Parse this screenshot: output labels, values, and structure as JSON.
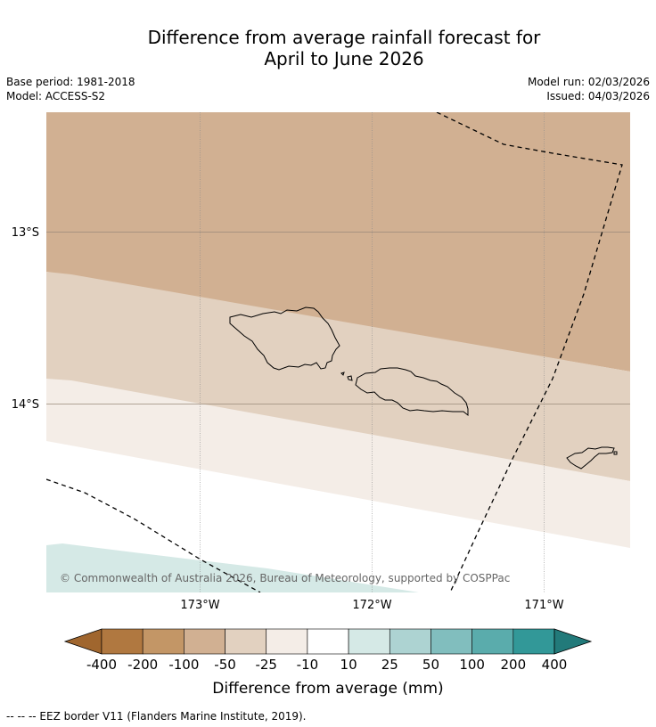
{
  "title_line1": "Difference from average rainfall forecast for",
  "title_line2": "April to June 2026",
  "meta_left": {
    "base_period": "Base period: 1981-2018",
    "model": "Model: ACCESS-S2"
  },
  "meta_right": {
    "model_run": "Model run: 02/03/2026",
    "issued": "Issued: 04/03/2026"
  },
  "map": {
    "lat_labels": [
      "13°S",
      "14°S"
    ],
    "lon_labels": [
      "173°W",
      "172°W",
      "171°W"
    ],
    "copyright": "© Commonwealth of Australia 2026, Bureau of Meteorology, supported by COSPPac"
  },
  "legend": {
    "title": "Difference from average (mm)",
    "ticks": [
      "-400",
      "-200",
      "-100",
      "-50",
      "-25",
      "-10",
      "10",
      "25",
      "50",
      "100",
      "200",
      "400"
    ],
    "colors": [
      "#a0662e",
      "#b07840",
      "#c39666",
      "#d1b092",
      "#e2d1c0",
      "#f4ede7",
      "#ffffff",
      "#d5e9e6",
      "#add3d2",
      "#81bebe",
      "#5aacac",
      "#329898",
      "#227a7a"
    ]
  },
  "footnote": "--  --  -- EEZ border V11 (Flanders Marine Institute, 2019)."
}
